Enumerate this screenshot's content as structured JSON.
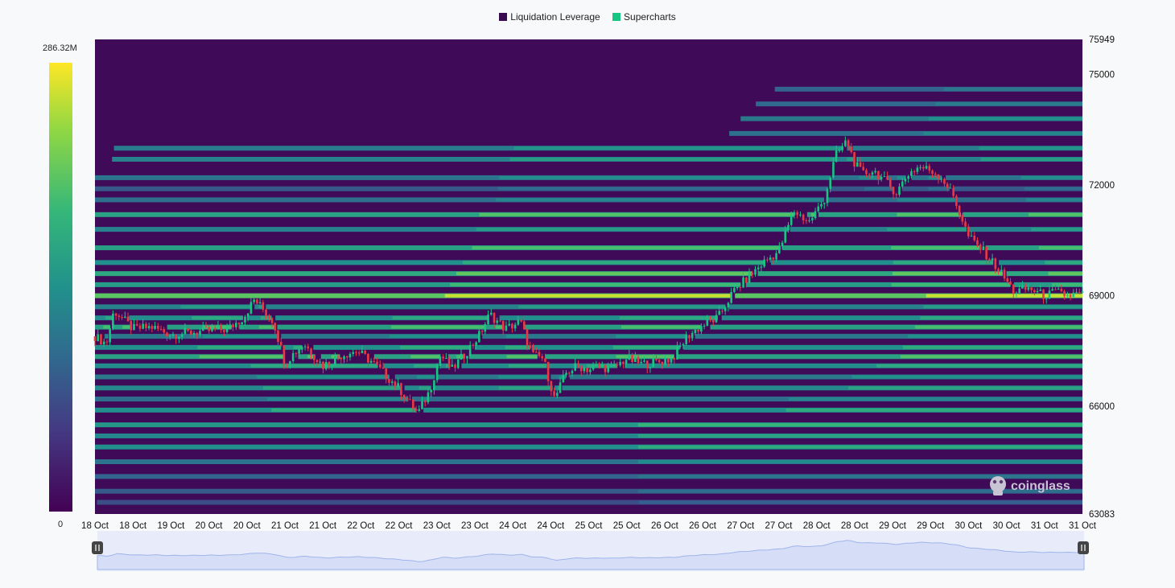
{
  "legend": [
    {
      "label": "Liquidation Leverage",
      "color": "#3b0b52"
    },
    {
      "label": "Supercharts",
      "color": "#16c784"
    }
  ],
  "colorbar": {
    "max_label": "286.32M",
    "min_label": "0",
    "colors": [
      "#440154",
      "#443983",
      "#31688e",
      "#21918c",
      "#35b779",
      "#90d743",
      "#fde725"
    ]
  },
  "watermark": {
    "text": "coinglass",
    "icon": "coinglass-logo-icon"
  },
  "navigator": {
    "left_handle": "grip-icon",
    "right_handle": "grip-icon"
  },
  "chart_data": {
    "type": "heatmap",
    "title": "",
    "y_axis": {
      "min": 63083,
      "max": 75949,
      "tick_labels": [
        "75949",
        "75000",
        "72000",
        "69000",
        "66000",
        "63083"
      ],
      "ticks": [
        75949,
        75000,
        72000,
        69000,
        66000,
        63083
      ]
    },
    "x_axis": {
      "tick_labels": [
        "18 Oct",
        "18 Oct",
        "19 Oct",
        "20 Oct",
        "20 Oct",
        "21 Oct",
        "21 Oct",
        "22 Oct",
        "22 Oct",
        "23 Oct",
        "23 Oct",
        "24 Oct",
        "24 Oct",
        "25 Oct",
        "25 Oct",
        "26 Oct",
        "26 Oct",
        "27 Oct",
        "27 Oct",
        "28 Oct",
        "28 Oct",
        "29 Oct",
        "29 Oct",
        "30 Oct",
        "30 Oct",
        "31 Oct",
        "31 Oct"
      ]
    },
    "price_series": {
      "name": "BTC price",
      "x_day": [
        0,
        0.3,
        0.5,
        0.8,
        1.0,
        1.5,
        2.0,
        2.5,
        3.0,
        3.5,
        3.9,
        4.2,
        4.7,
        5.0,
        5.5,
        6.0,
        6.5,
        6.9,
        7.3,
        7.6,
        8.0,
        8.5,
        8.8,
        9.1,
        9.4,
        9.8,
        10.1,
        10.4,
        10.8,
        11.2,
        11.5,
        11.8,
        12.1,
        12.4,
        12.7,
        13.0,
        13.3,
        13.6,
        14.0,
        14.4,
        14.8,
        15.2,
        15.6,
        16.0,
        16.4,
        16.8,
        17.2,
        17.6,
        18.0,
        18.4,
        18.8,
        19.2,
        19.5,
        19.8,
        20.0,
        20.2,
        20.5,
        20.8,
        21.1,
        21.4,
        21.7,
        22.0,
        22.3,
        22.6,
        23.0,
        23.4,
        23.8,
        24.2,
        24.6,
        25.0,
        25.3,
        25.6,
        25.9,
        26.2,
        26.5
      ],
      "y": [
        67900,
        67700,
        68600,
        68300,
        68100,
        68150,
        67950,
        68000,
        68050,
        68100,
        68400,
        68900,
        68300,
        67200,
        67700,
        67100,
        67400,
        67500,
        67200,
        66900,
        66500,
        65800,
        66400,
        67400,
        67000,
        67500,
        67900,
        68500,
        68100,
        68300,
        67400,
        67300,
        66200,
        66900,
        67100,
        67000,
        67100,
        67000,
        67300,
        67150,
        67200,
        67300,
        67900,
        68200,
        68400,
        69100,
        69500,
        69900,
        70200,
        71300,
        71000,
        71600,
        72800,
        73200,
        72600,
        72300,
        72400,
        72100,
        71800,
        72300,
        72500,
        72400,
        72200,
        71700,
        70600,
        70200,
        69700,
        69100,
        69200,
        69000,
        69100,
        69000,
        69050,
        69000,
        68950
      ],
      "colors": {
        "up": "#16c784",
        "down": "#ea3943"
      }
    },
    "liquidation_bands": [
      {
        "price": 74600,
        "level": 0.4
      },
      {
        "price": 74200,
        "level": 0.42
      },
      {
        "price": 73800,
        "level": 0.5
      },
      {
        "price": 73400,
        "level": 0.46
      },
      {
        "price": 73000,
        "level": 0.52
      },
      {
        "price": 72700,
        "level": 0.55
      },
      {
        "price": 72200,
        "level": 0.48
      },
      {
        "price": 71900,
        "level": 0.35
      },
      {
        "price": 71600,
        "level": 0.45
      },
      {
        "price": 71200,
        "level": 0.72
      },
      {
        "price": 70800,
        "level": 0.55
      },
      {
        "price": 70300,
        "level": 0.7
      },
      {
        "price": 69900,
        "level": 0.62
      },
      {
        "price": 69600,
        "level": 0.75
      },
      {
        "price": 69300,
        "level": 0.68
      },
      {
        "price": 69000,
        "level": 0.92
      },
      {
        "price": 68700,
        "level": 0.55
      },
      {
        "price": 68400,
        "level": 0.6
      },
      {
        "price": 68150,
        "level": 0.7
      },
      {
        "price": 67900,
        "level": 0.5
      },
      {
        "price": 67600,
        "level": 0.62
      },
      {
        "price": 67350,
        "level": 0.72
      },
      {
        "price": 67100,
        "level": 0.6
      },
      {
        "price": 66800,
        "level": 0.5
      },
      {
        "price": 66500,
        "level": 0.58
      },
      {
        "price": 66200,
        "level": 0.45
      },
      {
        "price": 65900,
        "level": 0.62
      },
      {
        "price": 65500,
        "level": 0.66
      },
      {
        "price": 65200,
        "level": 0.58
      },
      {
        "price": 64900,
        "level": 0.62
      },
      {
        "price": 64500,
        "level": 0.48
      },
      {
        "price": 64100,
        "level": 0.4
      },
      {
        "price": 63700,
        "level": 0.36
      },
      {
        "price": 63400,
        "level": 0.3
      }
    ],
    "grid": false,
    "legend_position": "top-center"
  }
}
